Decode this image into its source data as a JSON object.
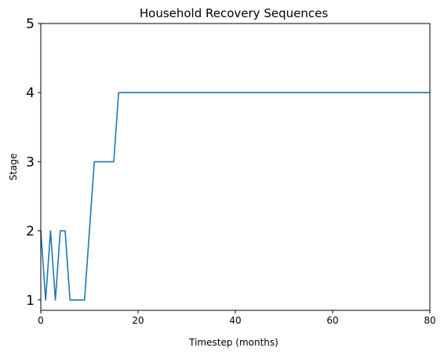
{
  "chart_data": {
    "type": "line",
    "title": "Household Recovery Sequences",
    "xlabel": "Timestep (months)",
    "ylabel": "Stage",
    "xlim": [
      0,
      80
    ],
    "ylim": [
      0.85,
      5
    ],
    "xticks": [
      0,
      20,
      40,
      60,
      80
    ],
    "yticks": [
      1,
      2,
      3,
      4,
      5
    ],
    "grid": false,
    "colors": {
      "series": "#1f77b4",
      "axes": "#000000",
      "background": "#ffffff"
    },
    "series": [
      {
        "x": [
          0,
          1,
          2,
          3,
          4,
          5,
          6,
          7,
          8,
          9,
          10,
          11,
          12,
          13,
          14,
          15,
          16,
          17,
          18,
          19,
          20,
          30,
          40,
          50,
          60,
          70,
          80
        ],
        "values": [
          2,
          1,
          2,
          1,
          2,
          2,
          1,
          1,
          1,
          1,
          2,
          3,
          3,
          3,
          3,
          3,
          4,
          4,
          4,
          4,
          4,
          4,
          4,
          4,
          4,
          4,
          4
        ]
      }
    ]
  }
}
